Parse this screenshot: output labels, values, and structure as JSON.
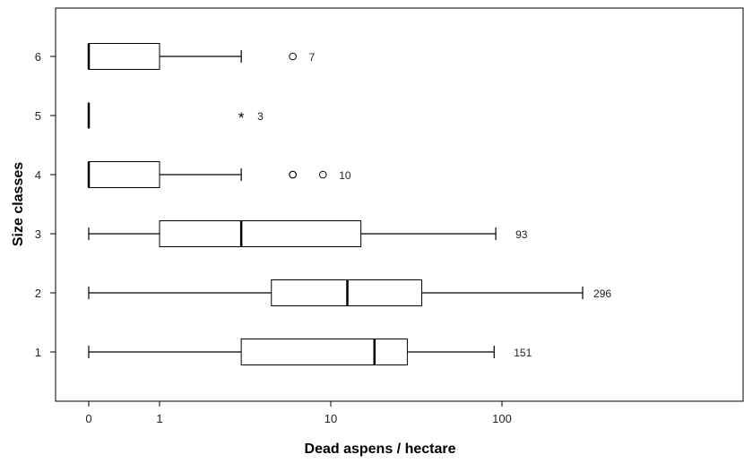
{
  "chart_data": {
    "type": "boxplot",
    "orientation": "horizontal",
    "xlabel": "Dead aspens / hectare",
    "ylabel": "Size classes",
    "x_scale": "symmetric-log",
    "x_ticks": [
      {
        "value": 0,
        "label": "0"
      },
      {
        "value": 1,
        "label": "1"
      },
      {
        "value": 10,
        "label": "10"
      },
      {
        "value": 100,
        "label": "100"
      }
    ],
    "categories": [
      "1",
      "2",
      "3",
      "4",
      "5",
      "6"
    ],
    "boxes": [
      {
        "category": "1",
        "whisker_low": 0,
        "q1": 3.0,
        "median": 18.0,
        "q3": 28.0,
        "whisker_high": 90,
        "outliers": [],
        "annotation": "151"
      },
      {
        "category": "2",
        "whisker_low": 0,
        "q1": 4.5,
        "median": 12.5,
        "q3": 34.0,
        "whisker_high": 296,
        "outliers": [],
        "annotation": "296"
      },
      {
        "category": "3",
        "whisker_low": 0,
        "q1": 1.0,
        "median": 3.0,
        "q3": 15.0,
        "whisker_high": 92,
        "outliers": [],
        "annotation": "93"
      },
      {
        "category": "4",
        "whisker_low": 0,
        "q1": 0,
        "median": 0,
        "q3": 1.0,
        "whisker_high": 3.0,
        "outliers": [
          {
            "value": 6.0,
            "marker": "circle",
            "count": 2
          },
          {
            "value": 9.0,
            "marker": "circle"
          }
        ],
        "annotation": "10"
      },
      {
        "category": "5",
        "whisker_low": 0,
        "q1": 0,
        "median": 0,
        "q3": 0,
        "whisker_high": 0,
        "outliers": [
          {
            "value": 3.0,
            "marker": "star"
          }
        ],
        "annotation": "3"
      },
      {
        "category": "6",
        "whisker_low": 0,
        "q1": 0,
        "median": 0,
        "q3": 1.0,
        "whisker_high": 3.0,
        "outliers": [
          {
            "value": 6.0,
            "marker": "circle"
          }
        ],
        "annotation": "7"
      }
    ],
    "grid": false,
    "legend": "none"
  }
}
